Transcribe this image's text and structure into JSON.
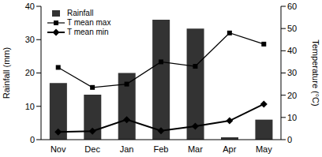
{
  "chart_data": {
    "type": "bar",
    "categories": [
      "Nov",
      "Dec",
      "Jan",
      "Feb",
      "Mar",
      "Apr",
      "May"
    ],
    "series": [
      {
        "name": "Rainfall",
        "type": "bar",
        "color": "#333333",
        "values": [
          17,
          13.5,
          20,
          36,
          33.3,
          0.7,
          6
        ]
      },
      {
        "name": "T mean max",
        "type": "line",
        "axis": "y2",
        "color": "#000000",
        "marker": "square",
        "values": [
          32.5,
          23.5,
          25,
          35,
          33,
          48,
          43
        ]
      },
      {
        "name": "T mean min",
        "type": "line",
        "axis": "y2",
        "color": "#000000",
        "marker": "diamond",
        "values": [
          3.5,
          3.8,
          9,
          4,
          6,
          8.5,
          16
        ]
      }
    ],
    "ylim": [
      0,
      40
    ],
    "yticks": [
      0,
      10,
      20,
      30,
      40
    ],
    "y2lim": [
      0,
      60
    ],
    "y2ticks": [
      0,
      10,
      20,
      30,
      40,
      50,
      60
    ],
    "ylabel": "Rainfall (mm)",
    "y2label": "Temperature (°C)",
    "legend": "upper left"
  }
}
